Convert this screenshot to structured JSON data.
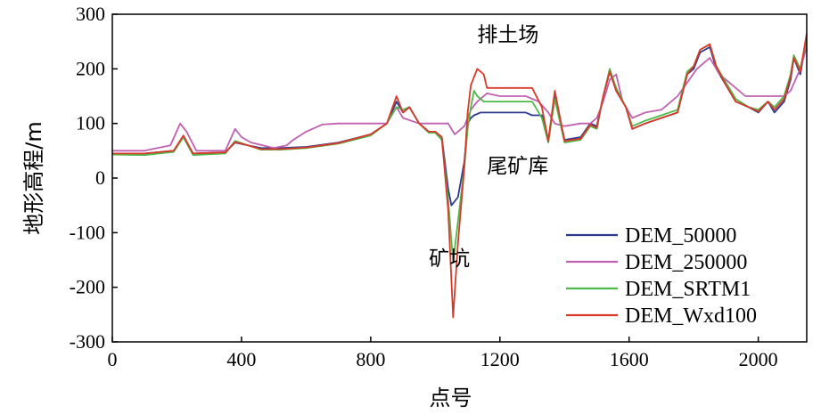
{
  "chart_data": {
    "type": "line",
    "xlabel": "点号",
    "ylabel": "地形高程/m",
    "xlim": [
      0,
      2150
    ],
    "ylim": [
      -300,
      300
    ],
    "xticks": [
      0,
      400,
      800,
      1200,
      1600,
      2000
    ],
    "yticks": [
      300,
      200,
      100,
      0,
      -100,
      -200,
      -300
    ],
    "grid": false,
    "legend_position": "bottom-right",
    "annotations": [
      {
        "text": "排土场",
        "x": 1130,
        "y": 250
      },
      {
        "text": "尾矿库",
        "x": 1160,
        "y": 10
      },
      {
        "text": "矿坑",
        "x": 980,
        "y": -160
      }
    ],
    "series": [
      {
        "name": "DEM_50000",
        "color": "#2b3a8c",
        "points": [
          [
            0,
            45
          ],
          [
            100,
            45
          ],
          [
            190,
            50
          ],
          [
            220,
            75
          ],
          [
            250,
            45
          ],
          [
            350,
            47
          ],
          [
            380,
            65
          ],
          [
            420,
            60
          ],
          [
            460,
            55
          ],
          [
            520,
            55
          ],
          [
            600,
            57
          ],
          [
            700,
            65
          ],
          [
            800,
            80
          ],
          [
            850,
            100
          ],
          [
            880,
            140
          ],
          [
            900,
            120
          ],
          [
            920,
            130
          ],
          [
            950,
            100
          ],
          [
            980,
            85
          ],
          [
            1000,
            85
          ],
          [
            1020,
            75
          ],
          [
            1040,
            -20
          ],
          [
            1050,
            -50
          ],
          [
            1070,
            -35
          ],
          [
            1090,
            30
          ],
          [
            1100,
            100
          ],
          [
            1110,
            110
          ],
          [
            1120,
            115
          ],
          [
            1140,
            120
          ],
          [
            1200,
            120
          ],
          [
            1280,
            120
          ],
          [
            1300,
            115
          ],
          [
            1330,
            115
          ],
          [
            1350,
            70
          ],
          [
            1370,
            150
          ],
          [
            1400,
            70
          ],
          [
            1450,
            75
          ],
          [
            1480,
            100
          ],
          [
            1500,
            95
          ],
          [
            1520,
            150
          ],
          [
            1540,
            195
          ],
          [
            1560,
            160
          ],
          [
            1590,
            130
          ],
          [
            1610,
            90
          ],
          [
            1650,
            100
          ],
          [
            1700,
            110
          ],
          [
            1750,
            120
          ],
          [
            1780,
            190
          ],
          [
            1800,
            200
          ],
          [
            1820,
            230
          ],
          [
            1850,
            240
          ],
          [
            1870,
            200
          ],
          [
            1900,
            170
          ],
          [
            1930,
            140
          ],
          [
            1970,
            130
          ],
          [
            2000,
            120
          ],
          [
            2030,
            140
          ],
          [
            2050,
            120
          ],
          [
            2080,
            140
          ],
          [
            2100,
            180
          ],
          [
            2110,
            220
          ],
          [
            2130,
            190
          ],
          [
            2150,
            260
          ]
        ]
      },
      {
        "name": "DEM_250000",
        "color": "#c060b0",
        "points": [
          [
            0,
            50
          ],
          [
            100,
            50
          ],
          [
            180,
            60
          ],
          [
            210,
            100
          ],
          [
            230,
            85
          ],
          [
            260,
            50
          ],
          [
            350,
            50
          ],
          [
            380,
            90
          ],
          [
            400,
            75
          ],
          [
            430,
            65
          ],
          [
            500,
            55
          ],
          [
            540,
            60
          ],
          [
            560,
            70
          ],
          [
            600,
            85
          ],
          [
            650,
            98
          ],
          [
            700,
            100
          ],
          [
            850,
            100
          ],
          [
            880,
            130
          ],
          [
            900,
            110
          ],
          [
            950,
            100
          ],
          [
            1000,
            100
          ],
          [
            1040,
            100
          ],
          [
            1060,
            80
          ],
          [
            1090,
            95
          ],
          [
            1110,
            125
          ],
          [
            1130,
            140
          ],
          [
            1160,
            155
          ],
          [
            1200,
            150
          ],
          [
            1280,
            150
          ],
          [
            1320,
            140
          ],
          [
            1350,
            120
          ],
          [
            1370,
            100
          ],
          [
            1400,
            95
          ],
          [
            1450,
            100
          ],
          [
            1480,
            100
          ],
          [
            1500,
            110
          ],
          [
            1520,
            140
          ],
          [
            1540,
            180
          ],
          [
            1560,
            190
          ],
          [
            1580,
            140
          ],
          [
            1610,
            110
          ],
          [
            1650,
            120
          ],
          [
            1700,
            125
          ],
          [
            1750,
            150
          ],
          [
            1780,
            175
          ],
          [
            1810,
            200
          ],
          [
            1850,
            220
          ],
          [
            1880,
            190
          ],
          [
            1920,
            170
          ],
          [
            1960,
            150
          ],
          [
            2000,
            150
          ],
          [
            2080,
            150
          ],
          [
            2100,
            160
          ],
          [
            2130,
            200
          ],
          [
            2150,
            240
          ]
        ]
      },
      {
        "name": "DEM_SRTM1",
        "color": "#4fb84a",
        "points": [
          [
            0,
            43
          ],
          [
            100,
            42
          ],
          [
            190,
            48
          ],
          [
            220,
            75
          ],
          [
            250,
            42
          ],
          [
            350,
            45
          ],
          [
            380,
            68
          ],
          [
            420,
            60
          ],
          [
            460,
            52
          ],
          [
            520,
            52
          ],
          [
            600,
            55
          ],
          [
            700,
            63
          ],
          [
            800,
            78
          ],
          [
            850,
            100
          ],
          [
            880,
            130
          ],
          [
            900,
            125
          ],
          [
            920,
            130
          ],
          [
            950,
            100
          ],
          [
            980,
            83
          ],
          [
            1000,
            83
          ],
          [
            1020,
            70
          ],
          [
            1040,
            -40
          ],
          [
            1055,
            -155
          ],
          [
            1070,
            -80
          ],
          [
            1090,
            20
          ],
          [
            1100,
            90
          ],
          [
            1110,
            130
          ],
          [
            1120,
            160
          ],
          [
            1130,
            150
          ],
          [
            1150,
            140
          ],
          [
            1280,
            140
          ],
          [
            1300,
            140
          ],
          [
            1330,
            110
          ],
          [
            1350,
            65
          ],
          [
            1370,
            145
          ],
          [
            1400,
            65
          ],
          [
            1450,
            70
          ],
          [
            1480,
            95
          ],
          [
            1500,
            90
          ],
          [
            1520,
            150
          ],
          [
            1540,
            200
          ],
          [
            1560,
            165
          ],
          [
            1590,
            130
          ],
          [
            1610,
            95
          ],
          [
            1650,
            105
          ],
          [
            1700,
            115
          ],
          [
            1750,
            125
          ],
          [
            1780,
            195
          ],
          [
            1800,
            205
          ],
          [
            1820,
            235
          ],
          [
            1850,
            245
          ],
          [
            1870,
            205
          ],
          [
            1900,
            175
          ],
          [
            1930,
            145
          ],
          [
            1970,
            130
          ],
          [
            2000,
            125
          ],
          [
            2030,
            140
          ],
          [
            2050,
            130
          ],
          [
            2080,
            150
          ],
          [
            2100,
            190
          ],
          [
            2110,
            225
          ],
          [
            2130,
            200
          ],
          [
            2150,
            255
          ]
        ]
      },
      {
        "name": "DEM_Wxd100",
        "color": "#d83a2a",
        "points": [
          [
            0,
            45
          ],
          [
            100,
            45
          ],
          [
            190,
            50
          ],
          [
            220,
            78
          ],
          [
            250,
            45
          ],
          [
            350,
            47
          ],
          [
            380,
            66
          ],
          [
            420,
            60
          ],
          [
            460,
            53
          ],
          [
            520,
            53
          ],
          [
            600,
            56
          ],
          [
            700,
            64
          ],
          [
            800,
            80
          ],
          [
            850,
            100
          ],
          [
            880,
            150
          ],
          [
            900,
            120
          ],
          [
            920,
            130
          ],
          [
            950,
            100
          ],
          [
            980,
            85
          ],
          [
            1000,
            85
          ],
          [
            1020,
            75
          ],
          [
            1040,
            -60
          ],
          [
            1055,
            -255
          ],
          [
            1070,
            -120
          ],
          [
            1090,
            20
          ],
          [
            1100,
            120
          ],
          [
            1110,
            170
          ],
          [
            1120,
            185
          ],
          [
            1130,
            200
          ],
          [
            1150,
            190
          ],
          [
            1160,
            165
          ],
          [
            1280,
            165
          ],
          [
            1300,
            165
          ],
          [
            1330,
            130
          ],
          [
            1350,
            68
          ],
          [
            1370,
            160
          ],
          [
            1400,
            68
          ],
          [
            1450,
            72
          ],
          [
            1480,
            98
          ],
          [
            1500,
            92
          ],
          [
            1520,
            150
          ],
          [
            1540,
            195
          ],
          [
            1560,
            160
          ],
          [
            1590,
            130
          ],
          [
            1610,
            90
          ],
          [
            1650,
            100
          ],
          [
            1700,
            110
          ],
          [
            1750,
            120
          ],
          [
            1780,
            190
          ],
          [
            1800,
            205
          ],
          [
            1820,
            235
          ],
          [
            1850,
            245
          ],
          [
            1870,
            205
          ],
          [
            1900,
            170
          ],
          [
            1930,
            140
          ],
          [
            1970,
            130
          ],
          [
            2000,
            122
          ],
          [
            2030,
            140
          ],
          [
            2050,
            125
          ],
          [
            2080,
            145
          ],
          [
            2100,
            185
          ],
          [
            2110,
            220
          ],
          [
            2130,
            195
          ],
          [
            2150,
            265
          ]
        ]
      }
    ]
  }
}
